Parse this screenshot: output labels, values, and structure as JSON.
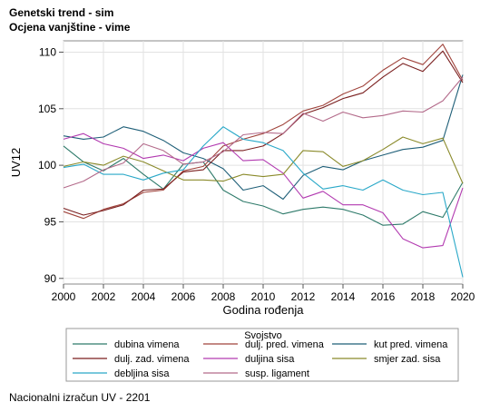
{
  "header": {
    "title": "Genetski trend - sim",
    "subtitle": "Ocjena vanjštine - vime"
  },
  "footer": {
    "text": "Nacionalni izračun UV - 2201"
  },
  "chart_data": {
    "type": "line",
    "xlabel": "Godina rođenja",
    "ylabel": "UV12",
    "xlim": [
      2000,
      2020
    ],
    "ylim": [
      89.5,
      111
    ],
    "xticks": [
      2000,
      2002,
      2004,
      2006,
      2008,
      2010,
      2012,
      2014,
      2016,
      2018,
      2020
    ],
    "yticks": [
      90,
      95,
      100,
      105,
      110
    ],
    "grid": true,
    "legend_title": "Svojstvo",
    "legend_position": "bottom",
    "x": [
      2000,
      2001,
      2002,
      2003,
      2004,
      2005,
      2006,
      2007,
      2008,
      2009,
      2010,
      2011,
      2012,
      2013,
      2014,
      2015,
      2016,
      2017,
      2018,
      2019,
      2020
    ],
    "series": [
      {
        "name": "dubina vimena",
        "color": "#2e7a6a",
        "values": [
          101.7,
          100.3,
          99.5,
          100.6,
          99.2,
          97.9,
          100.1,
          100.3,
          97.8,
          96.8,
          96.4,
          95.7,
          96.1,
          96.3,
          96.1,
          95.6,
          94.7,
          94.8,
          95.9,
          95.4,
          98.5
        ]
      },
      {
        "name": "dulj. pred. vimena",
        "color": "#a0443c",
        "values": [
          95.9,
          95.3,
          96.1,
          96.6,
          97.6,
          97.8,
          99.5,
          99.9,
          101.7,
          102.3,
          102.8,
          103.6,
          104.8,
          105.3,
          106.3,
          107.0,
          108.4,
          109.5,
          108.9,
          110.7,
          107.5
        ]
      },
      {
        "name": "kut pred. vimena",
        "color": "#1f5f78",
        "values": [
          102.6,
          102.3,
          102.5,
          103.4,
          103.0,
          102.2,
          101.1,
          100.6,
          99.7,
          97.8,
          98.2,
          97.0,
          99.1,
          99.9,
          99.6,
          100.4,
          100.9,
          101.4,
          101.6,
          102.2,
          108.0
        ]
      },
      {
        "name": "dulj. zad. vimena",
        "color": "#7a1f1f",
        "values": [
          96.2,
          95.6,
          96.0,
          96.5,
          97.8,
          97.9,
          99.4,
          99.6,
          101.3,
          101.3,
          101.7,
          102.8,
          104.5,
          105.1,
          105.9,
          106.4,
          107.8,
          109.0,
          108.3,
          110.1,
          107.3
        ]
      },
      {
        "name": "duljina sisa",
        "color": "#b23ab0",
        "values": [
          102.3,
          102.8,
          101.9,
          101.5,
          100.6,
          100.9,
          100.4,
          101.5,
          102.0,
          100.4,
          100.5,
          99.3,
          97.1,
          97.7,
          96.5,
          96.5,
          95.8,
          93.5,
          92.7,
          92.9,
          98.0
        ]
      },
      {
        "name": "smjer zad. sisa",
        "color": "#8a8a2a",
        "values": [
          99.9,
          100.3,
          100.0,
          100.8,
          100.3,
          99.5,
          98.7,
          98.7,
          98.6,
          99.2,
          99.0,
          99.2,
          101.3,
          101.2,
          99.9,
          100.4,
          101.4,
          102.5,
          101.9,
          102.4,
          98.4
        ]
      },
      {
        "name": "debljina sisa",
        "color": "#29a8c8",
        "values": [
          99.8,
          100.1,
          99.2,
          99.2,
          98.7,
          99.3,
          99.6,
          101.7,
          103.4,
          102.3,
          102.0,
          101.3,
          99.3,
          97.9,
          98.2,
          97.8,
          98.7,
          97.8,
          97.4,
          97.6,
          90.1
        ]
      },
      {
        "name": "susp. ligament",
        "color": "#b36a8a",
        "values": [
          98.0,
          98.6,
          99.6,
          100.2,
          101.9,
          101.3,
          100.1,
          100.3,
          101.2,
          102.7,
          102.9,
          102.8,
          104.6,
          103.9,
          104.7,
          104.2,
          104.4,
          104.8,
          104.7,
          105.7,
          107.8
        ]
      }
    ]
  }
}
